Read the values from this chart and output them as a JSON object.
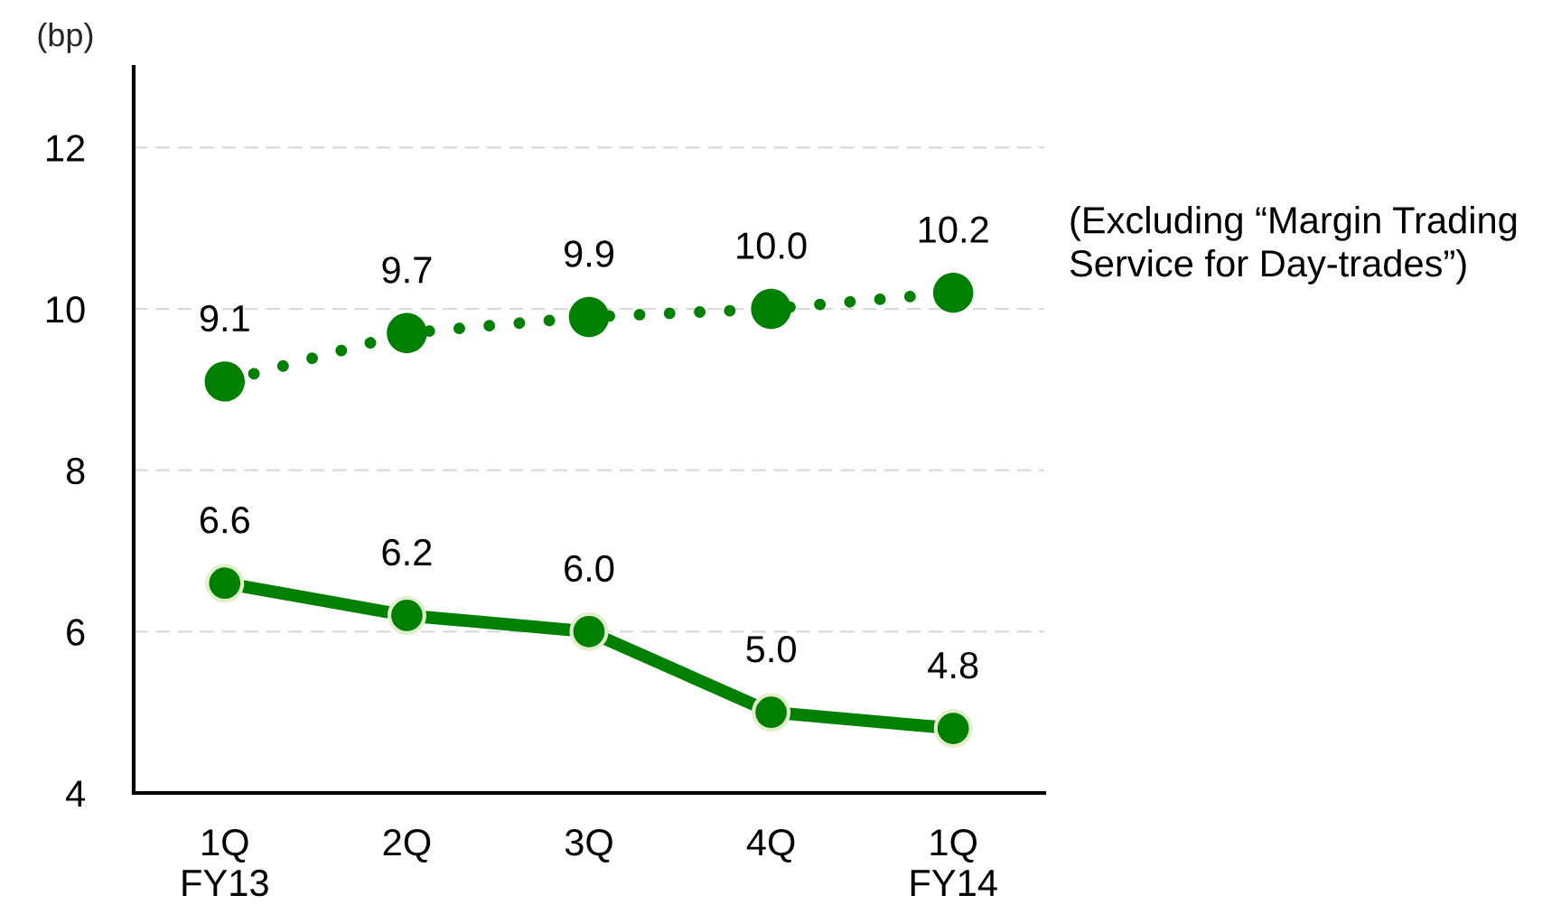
{
  "chart_data": {
    "type": "line",
    "ylabel": "(bp)",
    "categories": [
      "1Q\nFY13",
      "2Q",
      "3Q",
      "4Q",
      "1Q\nFY14"
    ],
    "series": [
      {
        "name": "(Excluding “Margin Trading\nService for Day-trades”)",
        "color": "#008000",
        "line_style": "dotted",
        "values": [
          9.1,
          9.7,
          9.9,
          10.0,
          10.2
        ],
        "value_labels": [
          "9.1",
          "9.7",
          "9.9",
          "10.0",
          "10.2"
        ]
      },
      {
        "color": "#008000",
        "line_style": "solid",
        "values": [
          6.6,
          6.2,
          6.0,
          5.0,
          4.8
        ],
        "value_labels": [
          "6.6",
          "6.2",
          "6.0",
          "5.0",
          "4.8"
        ]
      }
    ],
    "ylim": [
      4,
      13
    ],
    "yticks": [
      4,
      6,
      8,
      10,
      12
    ],
    "grid": "y",
    "legend": false,
    "marker": "circle"
  }
}
